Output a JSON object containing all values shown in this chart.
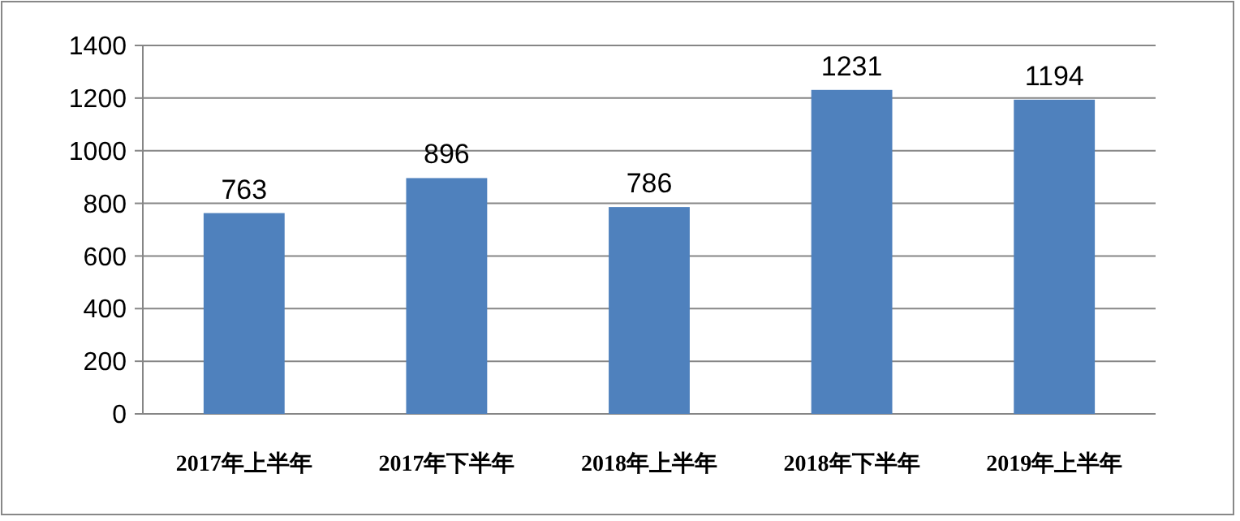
{
  "chart_data": {
    "type": "bar",
    "categories": [
      "2017年上半年",
      "2017年下半年",
      "2018年上半年",
      "2018年下半年",
      "2019年上半年"
    ],
    "values": [
      763,
      896,
      786,
      1231,
      1194
    ],
    "color": "#4f81bd",
    "ylim": [
      0,
      1400
    ],
    "yticks": [
      0,
      200,
      400,
      600,
      800,
      1000,
      1200,
      1400
    ],
    "grid": "y",
    "data_labels": true
  }
}
